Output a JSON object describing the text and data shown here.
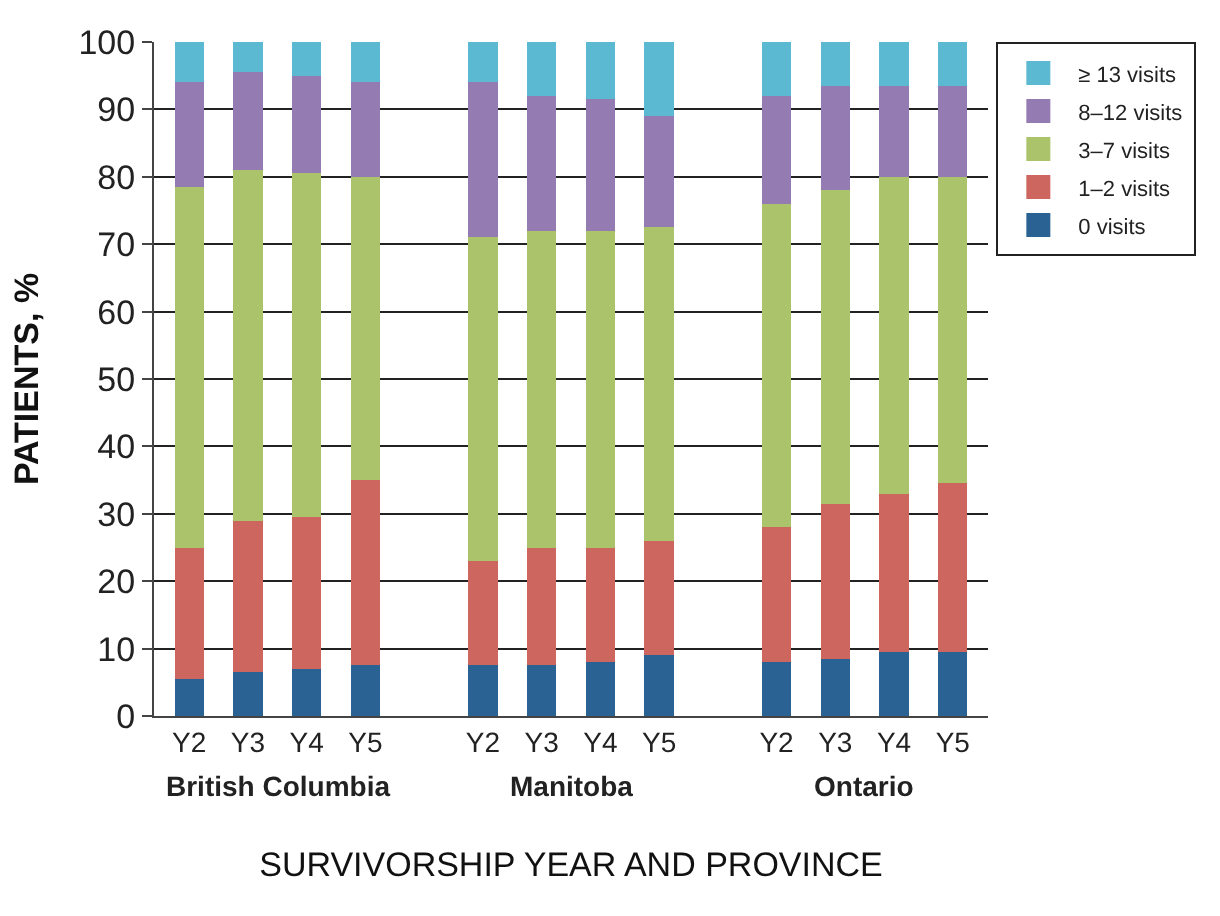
{
  "chart_data": {
    "type": "bar",
    "stacked": true,
    "xlabel": "SURVIVORSHIP YEAR AND PROVINCE",
    "ylabel": "PATIENTS, %",
    "categories": [
      "Y2",
      "Y3",
      "Y4",
      "Y5",
      null,
      "Y2",
      "Y3",
      "Y4",
      "Y5",
      null,
      "Y2",
      "Y3",
      "Y4",
      "Y5"
    ],
    "series": [
      {
        "name": "0 visits",
        "color": "#2a6393",
        "values": [
          5.5,
          6.5,
          7,
          7.5,
          null,
          7.5,
          7.5,
          8,
          9,
          null,
          8,
          8.5,
          9.5,
          9.5
        ]
      },
      {
        "name": "1–2 visits",
        "color": "#cd665f",
        "values": [
          19.5,
          22.5,
          22.5,
          27.5,
          null,
          15.5,
          17.5,
          17,
          17,
          null,
          20,
          23,
          23.5,
          25
        ]
      },
      {
        "name": "3–7 visits",
        "color": "#abc36b",
        "values": [
          53.5,
          52,
          51,
          45,
          null,
          48,
          47,
          47,
          46.5,
          null,
          48,
          46.5,
          47,
          45.5
        ]
      },
      {
        "name": "8–12 visits",
        "color": "#947bb1",
        "values": [
          15.5,
          14.5,
          14.5,
          14,
          null,
          23,
          20,
          19.5,
          16.5,
          null,
          16,
          15.5,
          13.5,
          13.5
        ]
      },
      {
        "name": "≥ 13 visits",
        "color": "#5bb9d2",
        "values": [
          6,
          4.5,
          5,
          6,
          null,
          6,
          8,
          8.5,
          11,
          null,
          8,
          6.5,
          6.5,
          6.5
        ]
      }
    ],
    "annotations": [
      "British Columbia",
      "Manitoba",
      "Ontario"
    ],
    "ylim": [
      0,
      100
    ],
    "yticks": [
      0,
      10,
      20,
      30,
      40,
      50,
      60,
      70,
      80,
      90,
      100
    ],
    "grid": "y",
    "legend": "top right"
  }
}
